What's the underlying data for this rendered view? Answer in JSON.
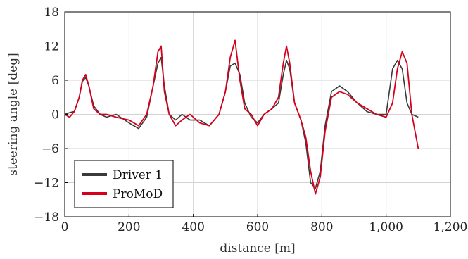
{
  "chart_data": {
    "type": "line",
    "xlabel": "distance [m]",
    "ylabel": "steering angle [deg]",
    "xlim": [
      0,
      1200
    ],
    "ylim": [
      -18,
      18
    ],
    "x_ticks": [
      0,
      200,
      400,
      600,
      800,
      1000,
      1200
    ],
    "x_tick_labels": [
      "0",
      "200",
      "400",
      "600",
      "800",
      "1,000",
      "1,200"
    ],
    "y_ticks": [
      -18,
      -12,
      -6,
      0,
      6,
      12,
      18
    ],
    "y_tick_labels": [
      "−18",
      "−12",
      "−6",
      "0",
      "6",
      "12",
      "18"
    ],
    "grid": true,
    "legend_position": "bottom-left",
    "series": [
      {
        "name": "Driver 1",
        "color": "#3a3a3a",
        "x": [
          0,
          15,
          30,
          45,
          55,
          65,
          75,
          90,
          110,
          130,
          160,
          200,
          230,
          255,
          275,
          290,
          300,
          310,
          325,
          345,
          365,
          390,
          420,
          450,
          480,
          500,
          515,
          530,
          545,
          560,
          580,
          600,
          620,
          645,
          665,
          680,
          690,
          700,
          715,
          735,
          750,
          765,
          780,
          795,
          810,
          830,
          855,
          880,
          910,
          940,
          970,
          1000,
          1020,
          1035,
          1050,
          1065,
          1080,
          1100
        ],
        "values": [
          0,
          0.3,
          0.5,
          3,
          5.8,
          6.5,
          5,
          1.5,
          0,
          -0.5,
          0,
          -1.5,
          -2.5,
          -0.5,
          5,
          9,
          10,
          5,
          0,
          -1,
          0,
          -1,
          -1,
          -2,
          0,
          4,
          8.5,
          9,
          7,
          2,
          -0.5,
          -1.5,
          0,
          1,
          2,
          7,
          9.5,
          8,
          2,
          -1,
          -5,
          -12,
          -13,
          -10,
          -2,
          4,
          5,
          4,
          2,
          0.5,
          0,
          0,
          8,
          9.5,
          8,
          2,
          0,
          -0.5
        ]
      },
      {
        "name": "ProMoD",
        "color": "#d6001c",
        "x": [
          0,
          15,
          30,
          45,
          55,
          65,
          75,
          90,
          110,
          130,
          160,
          200,
          230,
          255,
          275,
          290,
          300,
          310,
          325,
          345,
          365,
          390,
          420,
          450,
          480,
          500,
          515,
          530,
          545,
          560,
          580,
          600,
          620,
          645,
          665,
          680,
          690,
          700,
          715,
          735,
          750,
          765,
          780,
          795,
          810,
          830,
          855,
          880,
          910,
          940,
          970,
          1000,
          1020,
          1035,
          1050,
          1065,
          1080,
          1100
        ],
        "values": [
          0,
          -0.5,
          0.5,
          3,
          6,
          7,
          5,
          1,
          0,
          0,
          -0.5,
          -1,
          -2,
          0,
          5,
          11,
          12,
          4,
          0,
          -2,
          -1,
          0,
          -1.5,
          -2,
          0,
          4,
          10,
          13,
          6,
          1,
          0,
          -2,
          0,
          1,
          3,
          9,
          12,
          9,
          2,
          -1,
          -4,
          -10,
          -14,
          -11,
          -3,
          3,
          4,
          3.5,
          2,
          1,
          0,
          -0.5,
          2,
          8,
          11,
          9,
          0,
          -6
        ]
      }
    ]
  }
}
